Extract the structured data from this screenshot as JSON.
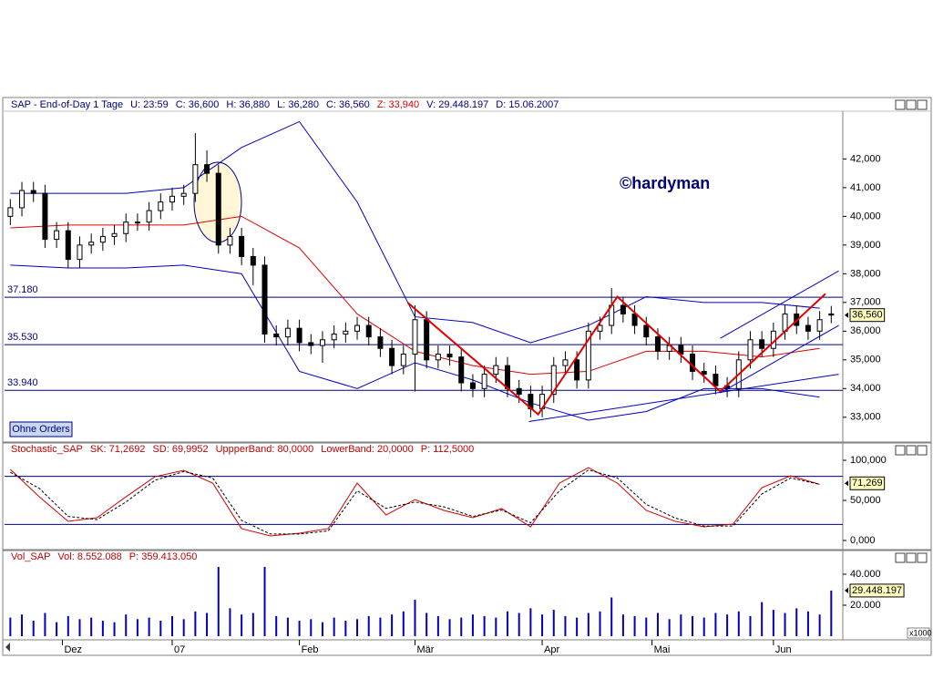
{
  "chart_data": [
    {
      "type": "candlestick",
      "header": [
        {
          "text": "SAP - End-of-Day 1 Tage",
          "color": "#000080"
        },
        {
          "text": "U: 23:59",
          "color": "#000080"
        },
        {
          "text": "C: 36,600",
          "color": "#000080"
        },
        {
          "text": "H: 36,880",
          "color": "#000080"
        },
        {
          "text": "L: 36,280",
          "color": "#000080"
        },
        {
          "text": "C: 36,560",
          "color": "#000080"
        },
        {
          "text": "Z: 33,940",
          "color": "#e00000"
        },
        {
          "text": "V: 29.448.197",
          "color": "#000080"
        },
        {
          "text": "D: 15.06.2007",
          "color": "#000080"
        }
      ],
      "annotation": "©hardyman",
      "x": [
        0,
        2,
        4,
        6,
        8,
        10,
        12,
        14,
        16,
        18,
        20,
        22,
        24,
        26,
        28,
        30,
        32,
        34,
        36,
        38,
        40,
        42,
        44,
        46,
        48,
        50,
        52,
        54,
        56,
        58,
        60,
        62,
        64,
        66,
        68,
        70,
        72,
        74,
        76,
        78,
        80,
        82,
        84,
        86,
        88,
        90,
        92,
        94,
        96,
        98,
        100,
        102,
        104,
        106,
        108,
        110,
        112,
        114,
        116,
        118,
        120,
        122,
        124,
        126,
        128,
        130,
        132,
        134,
        136,
        138,
        140,
        142
      ],
      "open": [
        40.0,
        40.3,
        40.9,
        40.8,
        39.2,
        39.5,
        38.5,
        39.0,
        39.1,
        39.3,
        39.4,
        39.8,
        39.8,
        40.2,
        40.5,
        40.7,
        40.8,
        41.8,
        41.5,
        39.0,
        39.3,
        38.6,
        38.3,
        35.9,
        35.8,
        36.1,
        35.6,
        35.5,
        35.7,
        35.9,
        36.0,
        36.2,
        35.8,
        35.4,
        34.8,
        35.2,
        36.4,
        35.0,
        35.2,
        35.1,
        34.2,
        34.0,
        34.5,
        34.8,
        34.0,
        33.8,
        33.3,
        33.8,
        34.8,
        35.0,
        34.3,
        36.0,
        36.2,
        36.9,
        36.6,
        36.2,
        35.8,
        35.3,
        35.5,
        35.2,
        34.6,
        34.5,
        34.1,
        34.0,
        35.0,
        35.7,
        35.4,
        36.0,
        36.6,
        36.2,
        36.0,
        36.6
      ],
      "high": [
        40.6,
        41.2,
        41.2,
        41.1,
        39.8,
        39.8,
        39.3,
        39.4,
        39.6,
        39.7,
        40.1,
        40.1,
        40.5,
        40.8,
        41.0,
        41.1,
        42.9,
        42.3,
        41.8,
        39.6,
        39.6,
        38.9,
        38.6,
        36.2,
        36.4,
        36.4,
        35.9,
        36.0,
        36.2,
        36.3,
        36.5,
        36.5,
        36.1,
        35.7,
        35.5,
        36.9,
        36.7,
        35.5,
        35.5,
        35.4,
        34.5,
        34.8,
        35.1,
        35.1,
        34.3,
        34.1,
        34.1,
        35.1,
        35.3,
        35.3,
        36.3,
        36.5,
        37.5,
        37.2,
        36.9,
        36.5,
        36.1,
        35.8,
        35.8,
        35.5,
        34.9,
        34.8,
        34.4,
        35.3,
        36.0,
        36.0,
        36.3,
        36.9,
        36.9,
        36.5,
        36.7,
        36.88
      ],
      "low": [
        39.7,
        40.0,
        40.5,
        38.9,
        38.9,
        38.2,
        38.2,
        38.7,
        38.8,
        39.0,
        39.1,
        39.5,
        39.5,
        39.9,
        40.2,
        40.4,
        40.5,
        41.2,
        38.7,
        38.7,
        38.3,
        37.6,
        35.6,
        35.5,
        35.5,
        35.3,
        35.2,
        34.9,
        35.4,
        35.6,
        35.7,
        35.5,
        35.1,
        34.5,
        34.5,
        33.9,
        34.7,
        34.7,
        34.8,
        33.9,
        33.7,
        33.7,
        34.2,
        33.7,
        33.5,
        33.0,
        33.0,
        33.5,
        34.5,
        34.0,
        34.0,
        35.7,
        35.9,
        36.3,
        35.9,
        35.5,
        35.0,
        35.0,
        34.9,
        34.3,
        34.2,
        33.8,
        33.7,
        33.7,
        34.7,
        35.1,
        35.1,
        35.7,
        35.9,
        35.7,
        35.7,
        36.28
      ],
      "close": [
        40.3,
        40.9,
        40.8,
        39.2,
        39.5,
        38.5,
        39.0,
        39.1,
        39.3,
        39.4,
        39.8,
        39.8,
        40.2,
        40.5,
        40.7,
        40.8,
        41.8,
        41.5,
        39.0,
        39.3,
        38.6,
        38.3,
        35.9,
        35.8,
        36.1,
        35.6,
        35.5,
        35.7,
        35.9,
        36.0,
        36.2,
        35.8,
        35.4,
        34.8,
        35.2,
        36.4,
        35.0,
        35.2,
        35.1,
        34.2,
        34.0,
        34.5,
        34.8,
        34.0,
        33.8,
        33.3,
        33.8,
        34.8,
        35.0,
        34.3,
        36.0,
        36.2,
        36.9,
        36.6,
        36.2,
        35.8,
        35.3,
        35.5,
        35.2,
        34.6,
        34.5,
        34.1,
        34.0,
        35.0,
        35.7,
        35.4,
        36.0,
        36.6,
        36.2,
        36.0,
        36.4,
        36.56
      ],
      "bands": {
        "x": [
          0,
          10,
          20,
          30,
          40,
          50,
          60,
          70,
          80,
          90,
          100,
          110,
          120,
          130,
          140
        ],
        "lines": [
          {
            "color": "#0000c0",
            "values": [
              40.8,
              40.8,
              40.8,
              41.0,
              42.4,
              43.3,
              40.5,
              36.5,
              36.3,
              35.6,
              36.2,
              37.2,
              37.0,
              37.0,
              36.8
            ]
          },
          {
            "color": "#e00000",
            "values": [
              39.6,
              39.7,
              39.7,
              39.7,
              40.0,
              38.9,
              36.6,
              35.3,
              34.8,
              34.5,
              34.6,
              35.3,
              35.3,
              35.1,
              35.4
            ]
          },
          {
            "color": "#0000c0",
            "values": [
              38.3,
              38.2,
              38.2,
              38.3,
              38.0,
              34.6,
              34.0,
              34.9,
              34.3,
              33.5,
              32.9,
              33.2,
              34.0,
              34.0,
              33.7
            ]
          }
        ]
      },
      "trendlines": [
        {
          "color": "#e00000",
          "x": [
            68.7,
            91.3,
            105,
            122.8,
            141
          ],
          "y": [
            37.0,
            33.1,
            37.2,
            33.9,
            37.3
          ]
        },
        {
          "color": "#0000c0",
          "x": [
            89.7,
            143.3
          ],
          "y": [
            32.85,
            34.5
          ]
        },
        {
          "color": "#0000c0",
          "x": [
            122.8,
            143.3
          ],
          "y": [
            35.75,
            38.1
          ]
        },
        {
          "color": "#0000c0",
          "x": [
            122.8,
            143.3
          ],
          "y": [
            33.85,
            36.2
          ]
        }
      ],
      "levels": [
        {
          "value": 37.18,
          "label": "37.180"
        },
        {
          "value": 35.53,
          "label": "35.530"
        },
        {
          "value": 33.94,
          "label": "33.940"
        }
      ],
      "xlim": [
        -1,
        144
      ],
      "ylim": [
        32.2,
        43.6
      ],
      "yticks": [
        {
          "value": 33,
          "label": "33,000"
        },
        {
          "value": 34,
          "label": "34,000"
        },
        {
          "value": 35,
          "label": "35,000"
        },
        {
          "value": 36,
          "label": "36,000"
        },
        {
          "value": 37,
          "label": "37,000"
        },
        {
          "value": 38,
          "label": "38,000"
        },
        {
          "value": 39,
          "label": "39,000"
        },
        {
          "value": 40,
          "label": "40,000"
        },
        {
          "value": 41,
          "label": "41,000"
        },
        {
          "value": 42,
          "label": "42,000"
        }
      ],
      "last_value": {
        "value": 36.56,
        "label": "36,560"
      }
    },
    {
      "type": "line",
      "header": [
        {
          "text": "Stochastic_SAP",
          "color": "#c00000"
        },
        {
          "text": "SK: 71,2692",
          "color": "#c00000"
        },
        {
          "text": "SD: 69,9952",
          "color": "#c00000"
        },
        {
          "text": "UppperBand: 80,0000",
          "color": "#c00000"
        },
        {
          "text": "LowerBand: 20,0000",
          "color": "#c00000"
        },
        {
          "text": "P: 112,5000",
          "color": "#c00000"
        }
      ],
      "x": [
        0,
        5,
        10,
        15,
        20,
        25,
        30,
        35,
        40,
        45,
        50,
        55,
        60,
        65,
        70,
        75,
        80,
        85,
        90,
        95,
        100,
        105,
        110,
        115,
        120,
        125,
        130,
        135,
        140
      ],
      "series": [
        {
          "color": "#d00000",
          "dashed": false,
          "values": [
            88.6,
            54.5,
            23.9,
            28.4,
            54.5,
            79.5,
            87.5,
            71.6,
            14.8,
            5.7,
            9.1,
            14.8,
            71.6,
            31.8,
            51,
            37.5,
            28.4,
            39.8,
            17,
            71.6,
            90.9,
            71.6,
            37.5,
            23.9,
            17,
            20.5,
            65.9,
            80.7,
            70
          ]
        },
        {
          "color": "#000000",
          "dashed": true,
          "values": [
            85,
            65,
            30,
            26,
            48,
            75,
            86,
            78,
            25,
            8,
            8,
            12,
            62,
            40,
            48,
            42,
            30,
            38,
            22,
            62,
            88,
            78,
            45,
            28,
            18,
            18,
            58,
            78,
            70
          ]
        }
      ],
      "levels": [
        80,
        20
      ],
      "xlim": [
        -1,
        144
      ],
      "ylim": [
        -11.4,
        105.7
      ],
      "yticks": [
        {
          "value": 0,
          "label": "0,000"
        },
        {
          "value": 50,
          "label": "50,000"
        },
        {
          "value": 100,
          "label": "100,000"
        }
      ],
      "last_value": {
        "value": 71.269,
        "label": "71,269"
      }
    },
    {
      "type": "bar",
      "header": [
        {
          "text": "Vol_SAP",
          "color": "#c00000"
        },
        {
          "text": "Vol: 8.552.088",
          "color": "#c00000"
        },
        {
          "text": "P: 359.413.050",
          "color": "#c00000"
        }
      ],
      "unit_note": "x1000",
      "x": [
        0,
        2,
        4,
        6,
        8,
        10,
        12,
        14,
        16,
        18,
        20,
        22,
        24,
        26,
        28,
        30,
        32,
        34,
        36,
        38,
        40,
        42,
        44,
        46,
        48,
        50,
        52,
        54,
        56,
        58,
        60,
        62,
        64,
        66,
        68,
        70,
        72,
        74,
        76,
        78,
        80,
        82,
        84,
        86,
        88,
        90,
        92,
        94,
        96,
        98,
        100,
        102,
        104,
        106,
        108,
        110,
        112,
        114,
        116,
        118,
        120,
        122,
        124,
        126,
        128,
        130,
        132,
        134,
        136,
        138,
        140,
        142
      ],
      "values": [
        12000,
        14000,
        10000,
        15000,
        9000,
        13000,
        11000,
        12000,
        10000,
        9000,
        14000,
        11000,
        12000,
        10000,
        13000,
        11000,
        16000,
        15000,
        44700,
        18000,
        14000,
        15000,
        44700,
        13000,
        12000,
        10000,
        11000,
        9000,
        12000,
        10000,
        11000,
        13000,
        12000,
        14000,
        16000,
        23500,
        15000,
        13000,
        11000,
        12000,
        14000,
        13000,
        12000,
        16000,
        15000,
        18000,
        14000,
        17000,
        13000,
        12000,
        15000,
        16000,
        25000,
        14000,
        13000,
        12000,
        15000,
        11000,
        14000,
        13000,
        12000,
        15000,
        14000,
        16000,
        13000,
        22000,
        17000,
        15000,
        18000,
        16000,
        14000,
        29448.197
      ],
      "color": "#0000c0",
      "xlim": [
        -1,
        144
      ],
      "xticks": [
        {
          "value": 9,
          "label": "Dez"
        },
        {
          "value": 28,
          "label": "07"
        },
        {
          "value": 50,
          "label": "Feb"
        },
        {
          "value": 70,
          "label": "Mär"
        },
        {
          "value": 92,
          "label": "Apr"
        },
        {
          "value": 111,
          "label": "Mai"
        },
        {
          "value": 132,
          "label": "Jun"
        }
      ],
      "ylim": [
        0,
        54700
      ],
      "yticks": [
        {
          "value": 20000,
          "label": "20.000"
        },
        {
          "value": 40000,
          "label": "40.000"
        }
      ],
      "last_value": {
        "value": 29448.197,
        "label": "29.448.197"
      }
    }
  ],
  "ui": {
    "button": "Ohne Orders"
  }
}
